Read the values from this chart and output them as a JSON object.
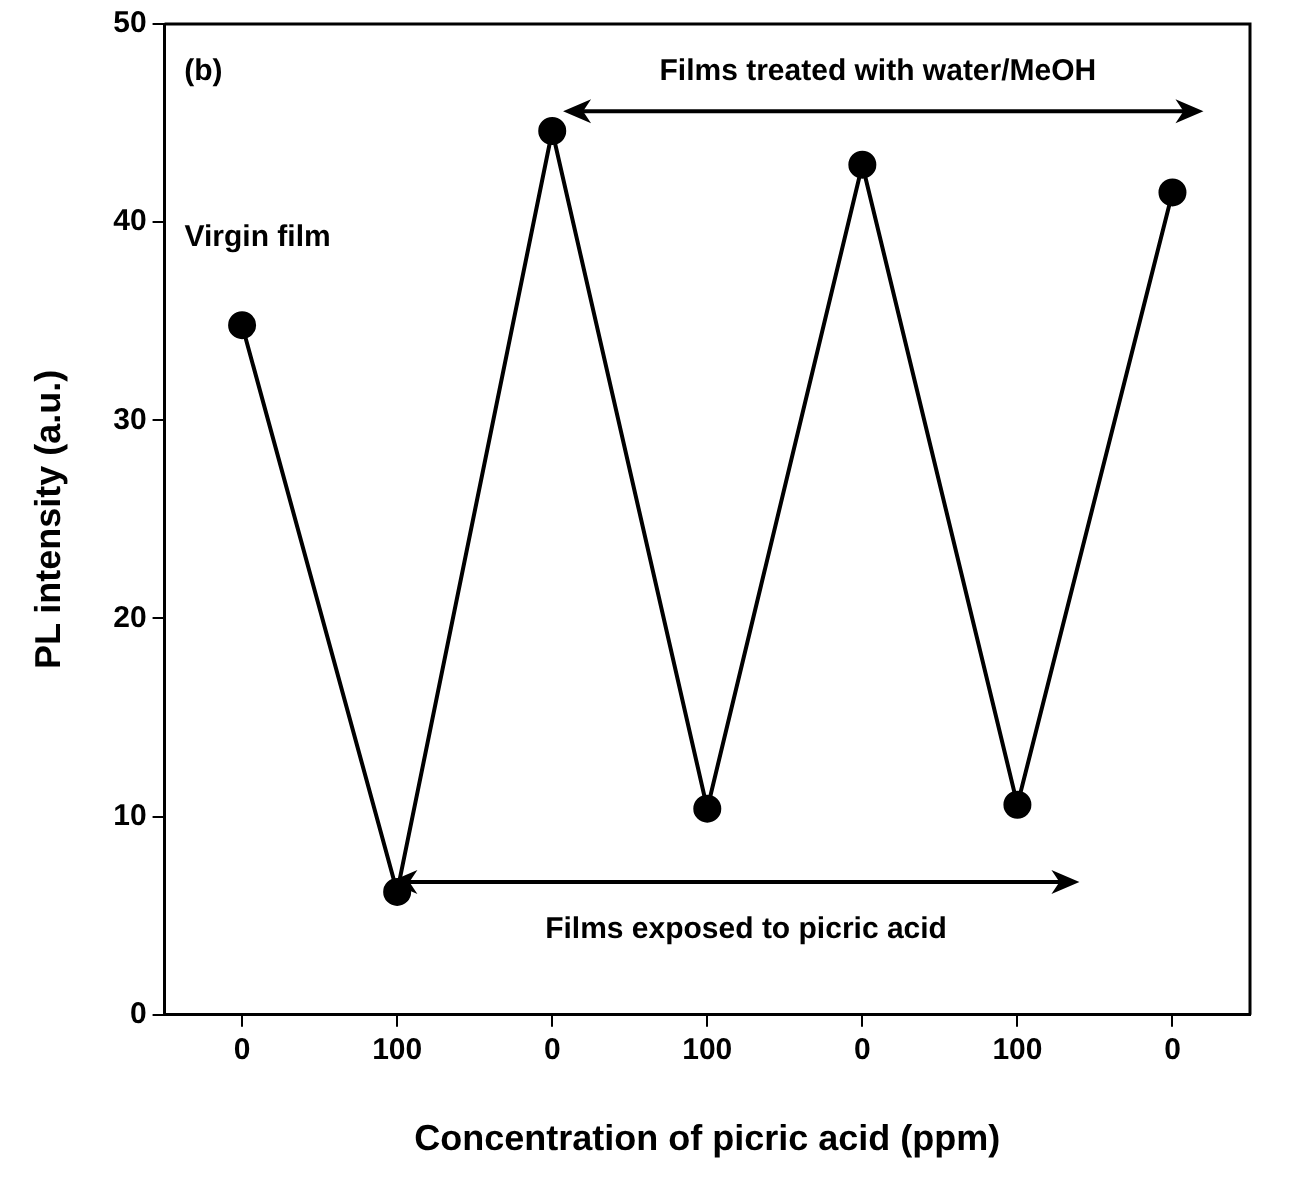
{
  "chart_data": {
    "type": "line",
    "xlabel": "Concentration of picric acid (ppm)",
    "ylabel": "PL intensity (a.u.)",
    "categories": [
      "0",
      "100",
      "0",
      "100",
      "0",
      "100",
      "0"
    ],
    "values": [
      34.8,
      6.2,
      44.6,
      10.4,
      42.9,
      10.6,
      41.5
    ],
    "color": "#000000",
    "marker": "circle",
    "line_style": "solid",
    "ylim": [
      0,
      50
    ],
    "yticks": [
      0,
      10,
      20,
      30,
      40,
      50
    ],
    "grid": false,
    "legend": false,
    "annotations": [
      "(b)",
      "Virgin film",
      "Films treated with water/MeOH",
      "Films exposed to picric acid"
    ]
  }
}
